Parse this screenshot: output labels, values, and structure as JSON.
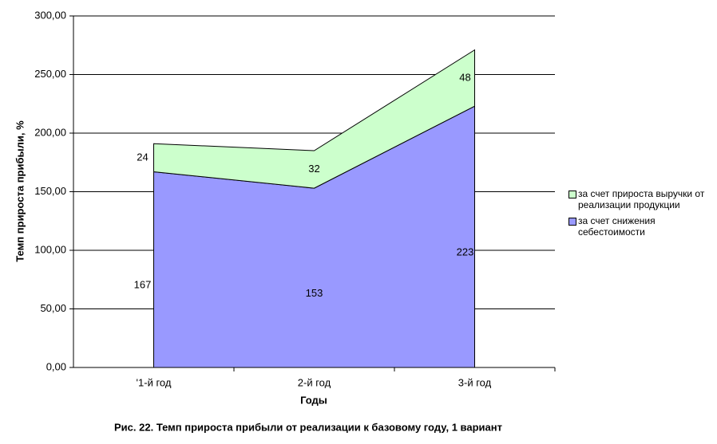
{
  "chart_data": {
    "type": "stacked-area",
    "caption": "Рис. 22. Темп прироста прибыли от реализации к базовому году, 1 вариант",
    "x_label": "Годы",
    "y_label": "Темп прироста прибыли, %",
    "categories": [
      "'1-й год",
      "2-й год",
      "3-й год"
    ],
    "series": [
      {
        "name": "за счет снижения себестоимости",
        "color": "#9999ff",
        "values": [
          167,
          153,
          223
        ]
      },
      {
        "name": "за счет прироста выручки от реализации продукции",
        "color": "#ccffcc",
        "values": [
          24,
          32,
          48
        ]
      }
    ],
    "ylim": [
      0,
      300
    ],
    "yticks": [
      {
        "value": 0,
        "label": "0,00"
      },
      {
        "value": 50,
        "label": "50,00"
      },
      {
        "value": 100,
        "label": "100,00"
      },
      {
        "value": 150,
        "label": "150,00"
      },
      {
        "value": 200,
        "label": "200,00"
      },
      {
        "value": 250,
        "label": "250,00"
      },
      {
        "value": 300,
        "label": "300,00"
      }
    ],
    "grid": true
  }
}
